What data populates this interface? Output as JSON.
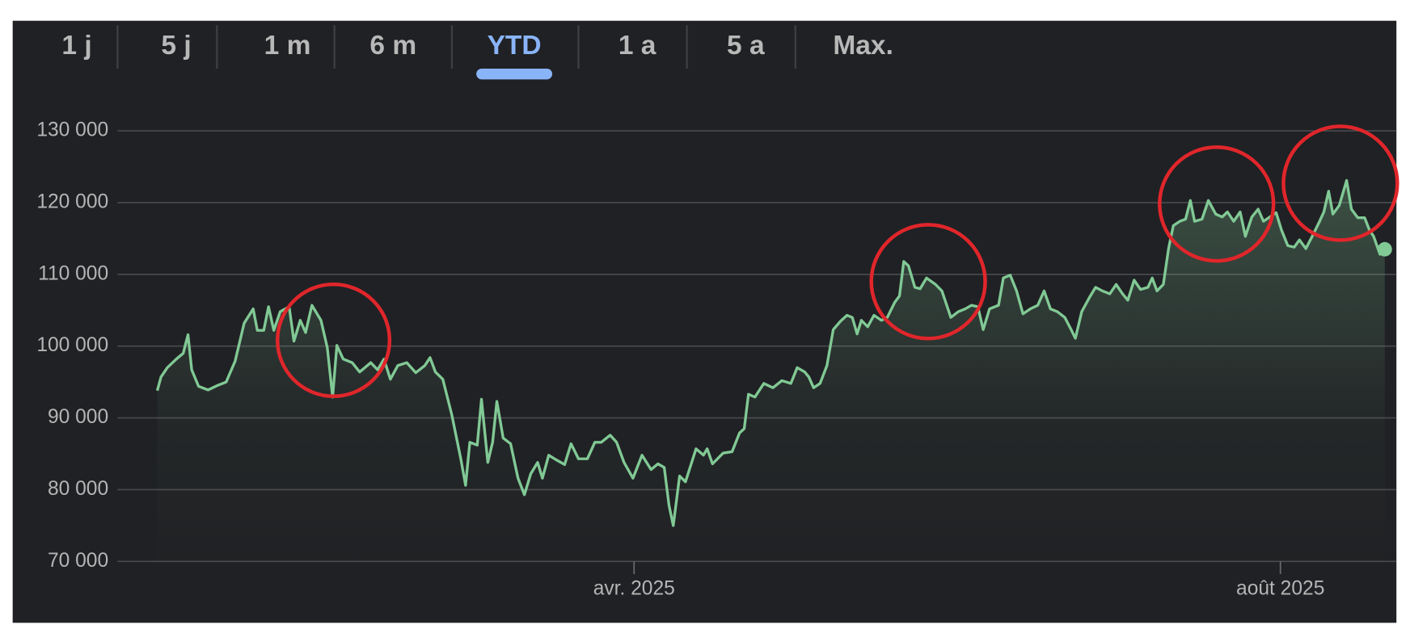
{
  "tabs": [
    "1 j",
    "5 j",
    "1 m",
    "6 m",
    "YTD",
    "1 a",
    "5 a",
    "Max."
  ],
  "selected_tab": "YTD",
  "chart_data": {
    "type": "line",
    "color": "#81c995",
    "grid": true,
    "xlim": [
      -7.5,
      233.9
    ],
    "xticks": [
      {
        "value": 90,
        "label": "avr. 2025"
      },
      {
        "value": 212,
        "label": "août 2025"
      }
    ],
    "ylim": [
      68000,
      131500
    ],
    "yticks": [
      {
        "value": 70000,
        "label": "70 000"
      },
      {
        "value": 80000,
        "label": "80 000"
      },
      {
        "value": 90000,
        "label": "90 000"
      },
      {
        "value": 100000,
        "label": "100 000"
      },
      {
        "value": 110000,
        "label": "110 000"
      },
      {
        "value": 120000,
        "label": "120 000"
      },
      {
        "value": 130000,
        "label": "130 000"
      }
    ],
    "x": [
      0,
      0.7,
      1.9,
      3.6,
      4.9,
      5.8,
      6.5,
      7.8,
      9.6,
      11.3,
      13.0,
      14.7,
      16.4,
      18.1,
      18.9,
      20.1,
      21.0,
      22.0,
      23.2,
      24.9,
      25.8,
      27.0,
      28.0,
      29.2,
      30.9,
      32.1,
      33.1,
      33.9,
      35.1,
      36.8,
      38.2,
      40.3,
      41.6,
      42.8,
      44.0,
      45.4,
      47.1,
      48.8,
      50.5,
      51.5,
      52.5,
      53.9,
      55.6,
      57.3,
      58.2,
      59.0,
      60.4,
      61.2,
      62.4,
      63.3,
      64.1,
      65.3,
      66.7,
      68.1,
      69.3,
      70.5,
      71.8,
      72.7,
      73.9,
      75.2,
      76.9,
      78.1,
      79.5,
      81.2,
      82.6,
      83.8,
      85.5,
      86.7,
      88.1,
      89.8,
      91.5,
      93.2,
      94.5,
      95.7,
      96.6,
      97.4,
      98.6,
      99.7,
      101.7,
      103.1,
      103.8,
      104.8,
      106.8,
      108.5,
      109.9,
      110.8,
      111.6,
      112.8,
      114.5,
      116.2,
      117.9,
      119.6,
      120.8,
      122.2,
      123.0,
      123.9,
      125.1,
      126.4,
      127.6,
      129.0,
      130.2,
      131.2,
      132.1,
      132.9,
      134.1,
      135.3,
      136.7,
      137.8,
      139.2,
      140.1,
      140.9,
      141.8,
      143.0,
      144.0,
      145.2,
      146.9,
      148.1,
      149.8,
      151.2,
      152.5,
      153.7,
      154.9,
      155.9,
      157.1,
      158.8,
      159.7,
      161.0,
      162.2,
      163.4,
      164.8,
      166.2,
      167.4,
      168.6,
      169.9,
      171.3,
      172.5,
      173.3,
      174.5,
      175.9,
      177.1,
      178.4,
      179.8,
      181.0,
      182.2,
      183.2,
      184.4,
      185.6,
      187.0,
      187.8,
      188.7,
      189.9,
      190.9,
      191.8,
      193.0,
      194.1,
      195.0,
      195.8,
      197.2,
      198.4,
      199.8,
      201.0,
      202.0,
      203.2,
      204.4,
      205.4,
      206.6,
      207.8,
      208.8,
      210.0,
      211.2,
      212.2,
      213.4,
      214.6,
      215.6,
      216.8,
      218.0,
      219.4,
      220.2,
      221.1,
      221.9,
      223.1,
      224.5,
      225.4,
      226.6,
      227.9,
      228.8,
      229.6,
      230.8,
      231.7
    ],
    "values": [
      93800,
      95700,
      97000,
      98200,
      99000,
      101600,
      96700,
      94400,
      93900,
      94500,
      95000,
      97900,
      103200,
      105200,
      102200,
      102200,
      105500,
      102200,
      104800,
      105500,
      100700,
      103600,
      101900,
      105700,
      103600,
      99800,
      92900,
      100100,
      98200,
      97700,
      96400,
      97700,
      96700,
      98200,
      95400,
      97300,
      97700,
      96300,
      97300,
      98400,
      96400,
      95400,
      90400,
      84300,
      80600,
      86600,
      86200,
      92600,
      83800,
      86600,
      92300,
      87200,
      86400,
      81600,
      79300,
      82200,
      83800,
      81600,
      84800,
      84200,
      83500,
      86400,
      84300,
      84300,
      86600,
      86600,
      87600,
      86600,
      83800,
      81600,
      84800,
      82800,
      83600,
      83100,
      77800,
      75000,
      81900,
      81100,
      85700,
      84800,
      85700,
      83600,
      85100,
      85300,
      87900,
      88500,
      93300,
      92900,
      94800,
      94200,
      95200,
      94800,
      97000,
      96400,
      95700,
      94200,
      94800,
      97300,
      102300,
      103500,
      104300,
      104000,
      101700,
      103600,
      102700,
      104300,
      103600,
      104000,
      106100,
      107000,
      111800,
      111200,
      108200,
      108000,
      109500,
      108600,
      107700,
      104000,
      104800,
      105200,
      105700,
      105500,
      102300,
      105200,
      105700,
      109500,
      109900,
      107700,
      104500,
      105200,
      105700,
      107700,
      105200,
      104800,
      104000,
      102300,
      101100,
      104800,
      106700,
      108200,
      107700,
      107300,
      108600,
      107300,
      106400,
      109200,
      107900,
      108200,
      109500,
      107700,
      108600,
      113600,
      116800,
      117400,
      117700,
      120300,
      117400,
      117700,
      120300,
      118400,
      118000,
      118700,
      117400,
      118700,
      115300,
      118000,
      119100,
      117400,
      118000,
      118600,
      116200,
      114000,
      113800,
      114800,
      113600,
      115300,
      117400,
      118700,
      121600,
      118400,
      119600,
      123100,
      119100,
      117900,
      117900,
      116200,
      115300,
      112800,
      113500
    ]
  }
}
